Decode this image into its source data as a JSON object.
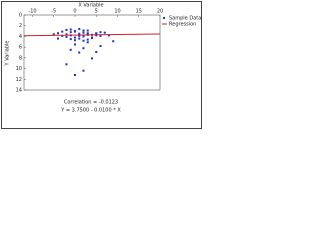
{
  "chart_data": {
    "type": "scatter",
    "x_title": "X Variable",
    "y_title": "Y Variable",
    "xlim": [
      -12,
      20
    ],
    "xticks": [
      -10,
      -5,
      0,
      5,
      10,
      15,
      20
    ],
    "ylim": [
      0,
      14
    ],
    "yticks": [
      0,
      2,
      4,
      6,
      8,
      10,
      12,
      14
    ],
    "invert_y": true,
    "x_axis_top": true,
    "series": [
      {
        "name": "Sample Data",
        "color": "#1f2fd0",
        "x": [
          -4,
          -3,
          -2,
          -1,
          0,
          1,
          2,
          3,
          4,
          5,
          6,
          -3,
          -2,
          -1,
          0,
          1,
          2,
          3,
          4,
          5,
          -2,
          -1,
          0,
          1,
          2,
          3,
          -1,
          0,
          1,
          2,
          3,
          4,
          5,
          6,
          7,
          -5,
          -4,
          8,
          0,
          2,
          3,
          1,
          -1,
          4,
          6,
          -2,
          2,
          5,
          9,
          0,
          3
        ],
        "values": [
          3.4,
          3.1,
          3.6,
          3.2,
          3.0,
          3.5,
          3.3,
          2.9,
          3.7,
          3.4,
          3.2,
          3.9,
          4.1,
          3.8,
          4.2,
          3.9,
          4.0,
          3.6,
          4.3,
          3.8,
          2.8,
          2.7,
          3.1,
          2.6,
          2.9,
          3.4,
          4.5,
          4.7,
          4.4,
          4.8,
          4.6,
          4.2,
          3.5,
          3.9,
          3.3,
          3.6,
          4.4,
          3.8,
          5.5,
          6.2,
          5.1,
          7.0,
          6.5,
          8.1,
          5.8,
          9.2,
          10.4,
          6.9,
          4.9,
          11.2,
          3.7
        ]
      },
      {
        "name": "Regression",
        "color": "#d02020",
        "intercept": 3.75,
        "slope": -0.01
      }
    ],
    "legend": "top-right",
    "notes": [
      "Correlation = -0.0123",
      "Y = 3.7500 - 0.0100 * X"
    ]
  }
}
